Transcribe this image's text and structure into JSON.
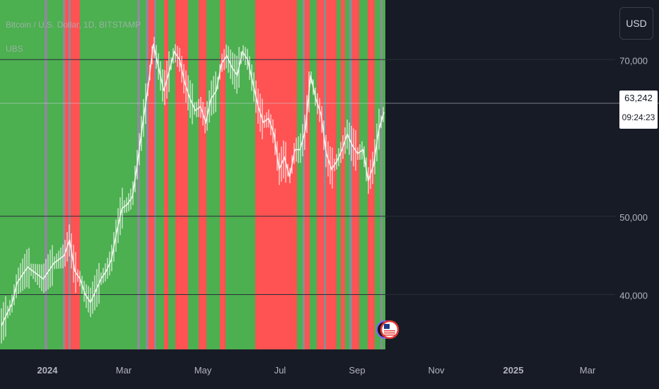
{
  "header": {
    "symbol_line": "Bitcoin / U.S. Dollar, 1D, BITSTAMP",
    "indicator_name": "UBS"
  },
  "toolbar": {
    "currency_label": "USD"
  },
  "last_price": {
    "value": "63,242",
    "countdown": "09:24:23"
  },
  "colors": {
    "background": "#171b26",
    "green_zone": "#4caf50",
    "red_zone": "#ff5252",
    "gray_zone": "#8a8d96",
    "candles": "#ffffff",
    "axis_text": "#b2b5be",
    "grid": "#2a2e39"
  },
  "chart_data": {
    "type": "line",
    "series": [
      {
        "values": [
          36000,
          37500,
          38800,
          41500,
          42500,
          43500,
          43000,
          42500,
          42000,
          43000,
          44000,
          44500,
          45000,
          47000,
          43000,
          42000,
          40000,
          39000,
          40500,
          42000,
          43000,
          44500,
          48000,
          51000,
          51500,
          52500,
          57000,
          62000,
          66500,
          72000,
          69000,
          66000,
          68500,
          71000,
          70000,
          67000,
          65000,
          63500,
          64000,
          62000,
          65000,
          66000,
          69500,
          70500,
          69000,
          68000,
          71000,
          70000,
          67000,
          64000,
          62000,
          62500,
          60500,
          56000,
          57500,
          55000,
          58500,
          58500,
          61000,
          68000,
          65000,
          63000,
          58000,
          56000,
          57000,
          58500,
          60500,
          59000,
          58000,
          58500,
          54500,
          56500,
          61000,
          63300
        ]
      }
    ],
    "x_tick_labels": [
      "2024",
      "Mar",
      "May",
      "Jul",
      "Sep",
      "Nov",
      "2025",
      "Mar"
    ],
    "y_tick_labels": [
      "70,000",
      "50,000",
      "40,000"
    ],
    "zones": [
      {
        "state": "green",
        "from": 0,
        "to": 63
      },
      {
        "state": "gray",
        "from": 63,
        "to": 67
      },
      {
        "state": "green",
        "from": 67,
        "to": 89
      },
      {
        "state": "gray",
        "from": 89,
        "to": 92
      },
      {
        "state": "red",
        "from": 92,
        "to": 97
      },
      {
        "state": "gray",
        "from": 97,
        "to": 100
      },
      {
        "state": "red",
        "from": 100,
        "to": 113
      },
      {
        "state": "green",
        "from": 113,
        "to": 194
      },
      {
        "state": "gray",
        "from": 194,
        "to": 198
      },
      {
        "state": "green",
        "from": 198,
        "to": 206
      },
      {
        "state": "gray",
        "from": 206,
        "to": 210
      },
      {
        "state": "red",
        "from": 210,
        "to": 218
      },
      {
        "state": "gray",
        "from": 218,
        "to": 221
      },
      {
        "state": "green",
        "from": 221,
        "to": 232
      },
      {
        "state": "red",
        "from": 232,
        "to": 238
      },
      {
        "state": "green",
        "from": 238,
        "to": 248
      },
      {
        "state": "red",
        "from": 248,
        "to": 266
      },
      {
        "state": "green",
        "from": 266,
        "to": 281
      },
      {
        "state": "red",
        "from": 281,
        "to": 292
      },
      {
        "state": "green",
        "from": 292,
        "to": 311
      },
      {
        "state": "red",
        "from": 311,
        "to": 319
      },
      {
        "state": "green",
        "from": 319,
        "to": 361
      },
      {
        "state": "red",
        "from": 361,
        "to": 420
      },
      {
        "state": "green",
        "from": 420,
        "to": 428
      },
      {
        "state": "gray",
        "from": 428,
        "to": 431
      },
      {
        "state": "red",
        "from": 431,
        "to": 438
      },
      {
        "state": "green",
        "from": 438,
        "to": 448
      },
      {
        "state": "red",
        "from": 448,
        "to": 458
      },
      {
        "state": "gray",
        "from": 458,
        "to": 461
      },
      {
        "state": "red",
        "from": 461,
        "to": 476
      },
      {
        "state": "green",
        "from": 476,
        "to": 482
      },
      {
        "state": "red",
        "from": 482,
        "to": 488
      },
      {
        "state": "green",
        "from": 488,
        "to": 494
      },
      {
        "state": "gray",
        "from": 494,
        "to": 498
      },
      {
        "state": "red",
        "from": 498,
        "to": 508
      },
      {
        "state": "green",
        "from": 508,
        "to": 520
      },
      {
        "state": "red",
        "from": 520,
        "to": 530
      },
      {
        "state": "green",
        "from": 530,
        "to": 538
      },
      {
        "state": "gray",
        "from": 538,
        "to": 541
      },
      {
        "state": "green",
        "from": 541,
        "to": 545
      }
    ],
    "ylim": [
      33000,
      74000
    ],
    "grid": true,
    "legend": "none"
  }
}
